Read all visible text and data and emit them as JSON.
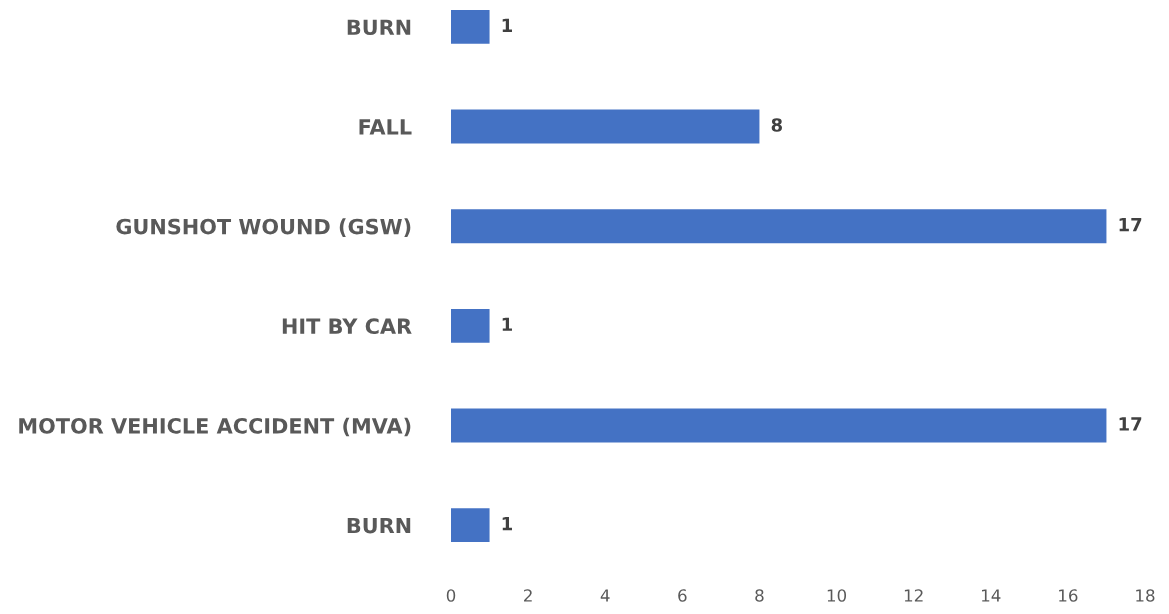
{
  "chart_data": {
    "type": "bar",
    "orientation": "horizontal",
    "categories": [
      "BURN",
      "FALL",
      "GUNSHOT WOUND (GSW)",
      "HIT BY CAR",
      "MOTOR VEHICLE ACCIDENT (MVA)",
      "BURN"
    ],
    "values": [
      1,
      8,
      17,
      1,
      17,
      1
    ],
    "color": "#4472c4",
    "xlim": [
      0,
      18
    ],
    "xticks": [
      0,
      2,
      4,
      6,
      8,
      10,
      12,
      14,
      16,
      18
    ],
    "data_labels": true,
    "grid": false,
    "legend": false
  }
}
